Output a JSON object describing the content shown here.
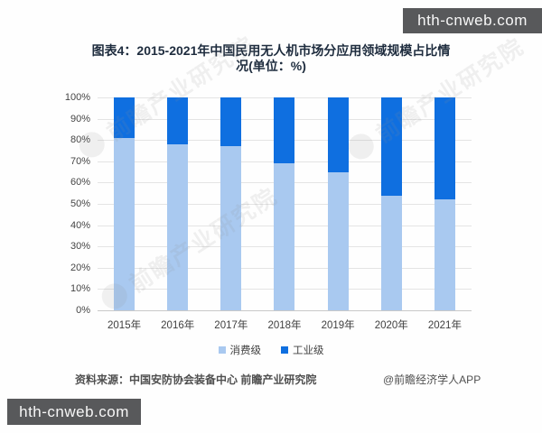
{
  "page": {
    "watermark_top": "hth-cnweb.com",
    "watermark_bottom": "hth-cnweb.com"
  },
  "title": {
    "line1": "图表4：2015-2021年中国民用无人机市场分应用领域规模占比情",
    "line2": "况(单位：%)"
  },
  "chart_data": {
    "type": "bar",
    "stacked": true,
    "unit": "%",
    "title": "2015-2021年中国民用无人机市场分应用领域规模占比情况",
    "categories": [
      "2015年",
      "2016年",
      "2017年",
      "2018年",
      "2019年",
      "2020年",
      "2021年"
    ],
    "series": [
      {
        "name": "消费级",
        "color": "#a9c9f0",
        "values": [
          81,
          78,
          77,
          69,
          65,
          54,
          52
        ]
      },
      {
        "name": "工业级",
        "color": "#0f6fe0",
        "values": [
          19,
          22,
          23,
          31,
          35,
          46,
          48
        ]
      }
    ],
    "y_ticks": [
      "100%",
      "90%",
      "80%",
      "70%",
      "60%",
      "50%",
      "40%",
      "30%",
      "20%",
      "10%",
      "0%"
    ],
    "ylim": [
      0,
      100
    ],
    "grid": true,
    "legend_position": "bottom"
  },
  "chart_watermark": "前瞻产业研究院",
  "footer": {
    "source": "资料来源：中国安防协会装备中心 前瞻产业研究院",
    "credit": "@前瞻经济学人APP"
  }
}
